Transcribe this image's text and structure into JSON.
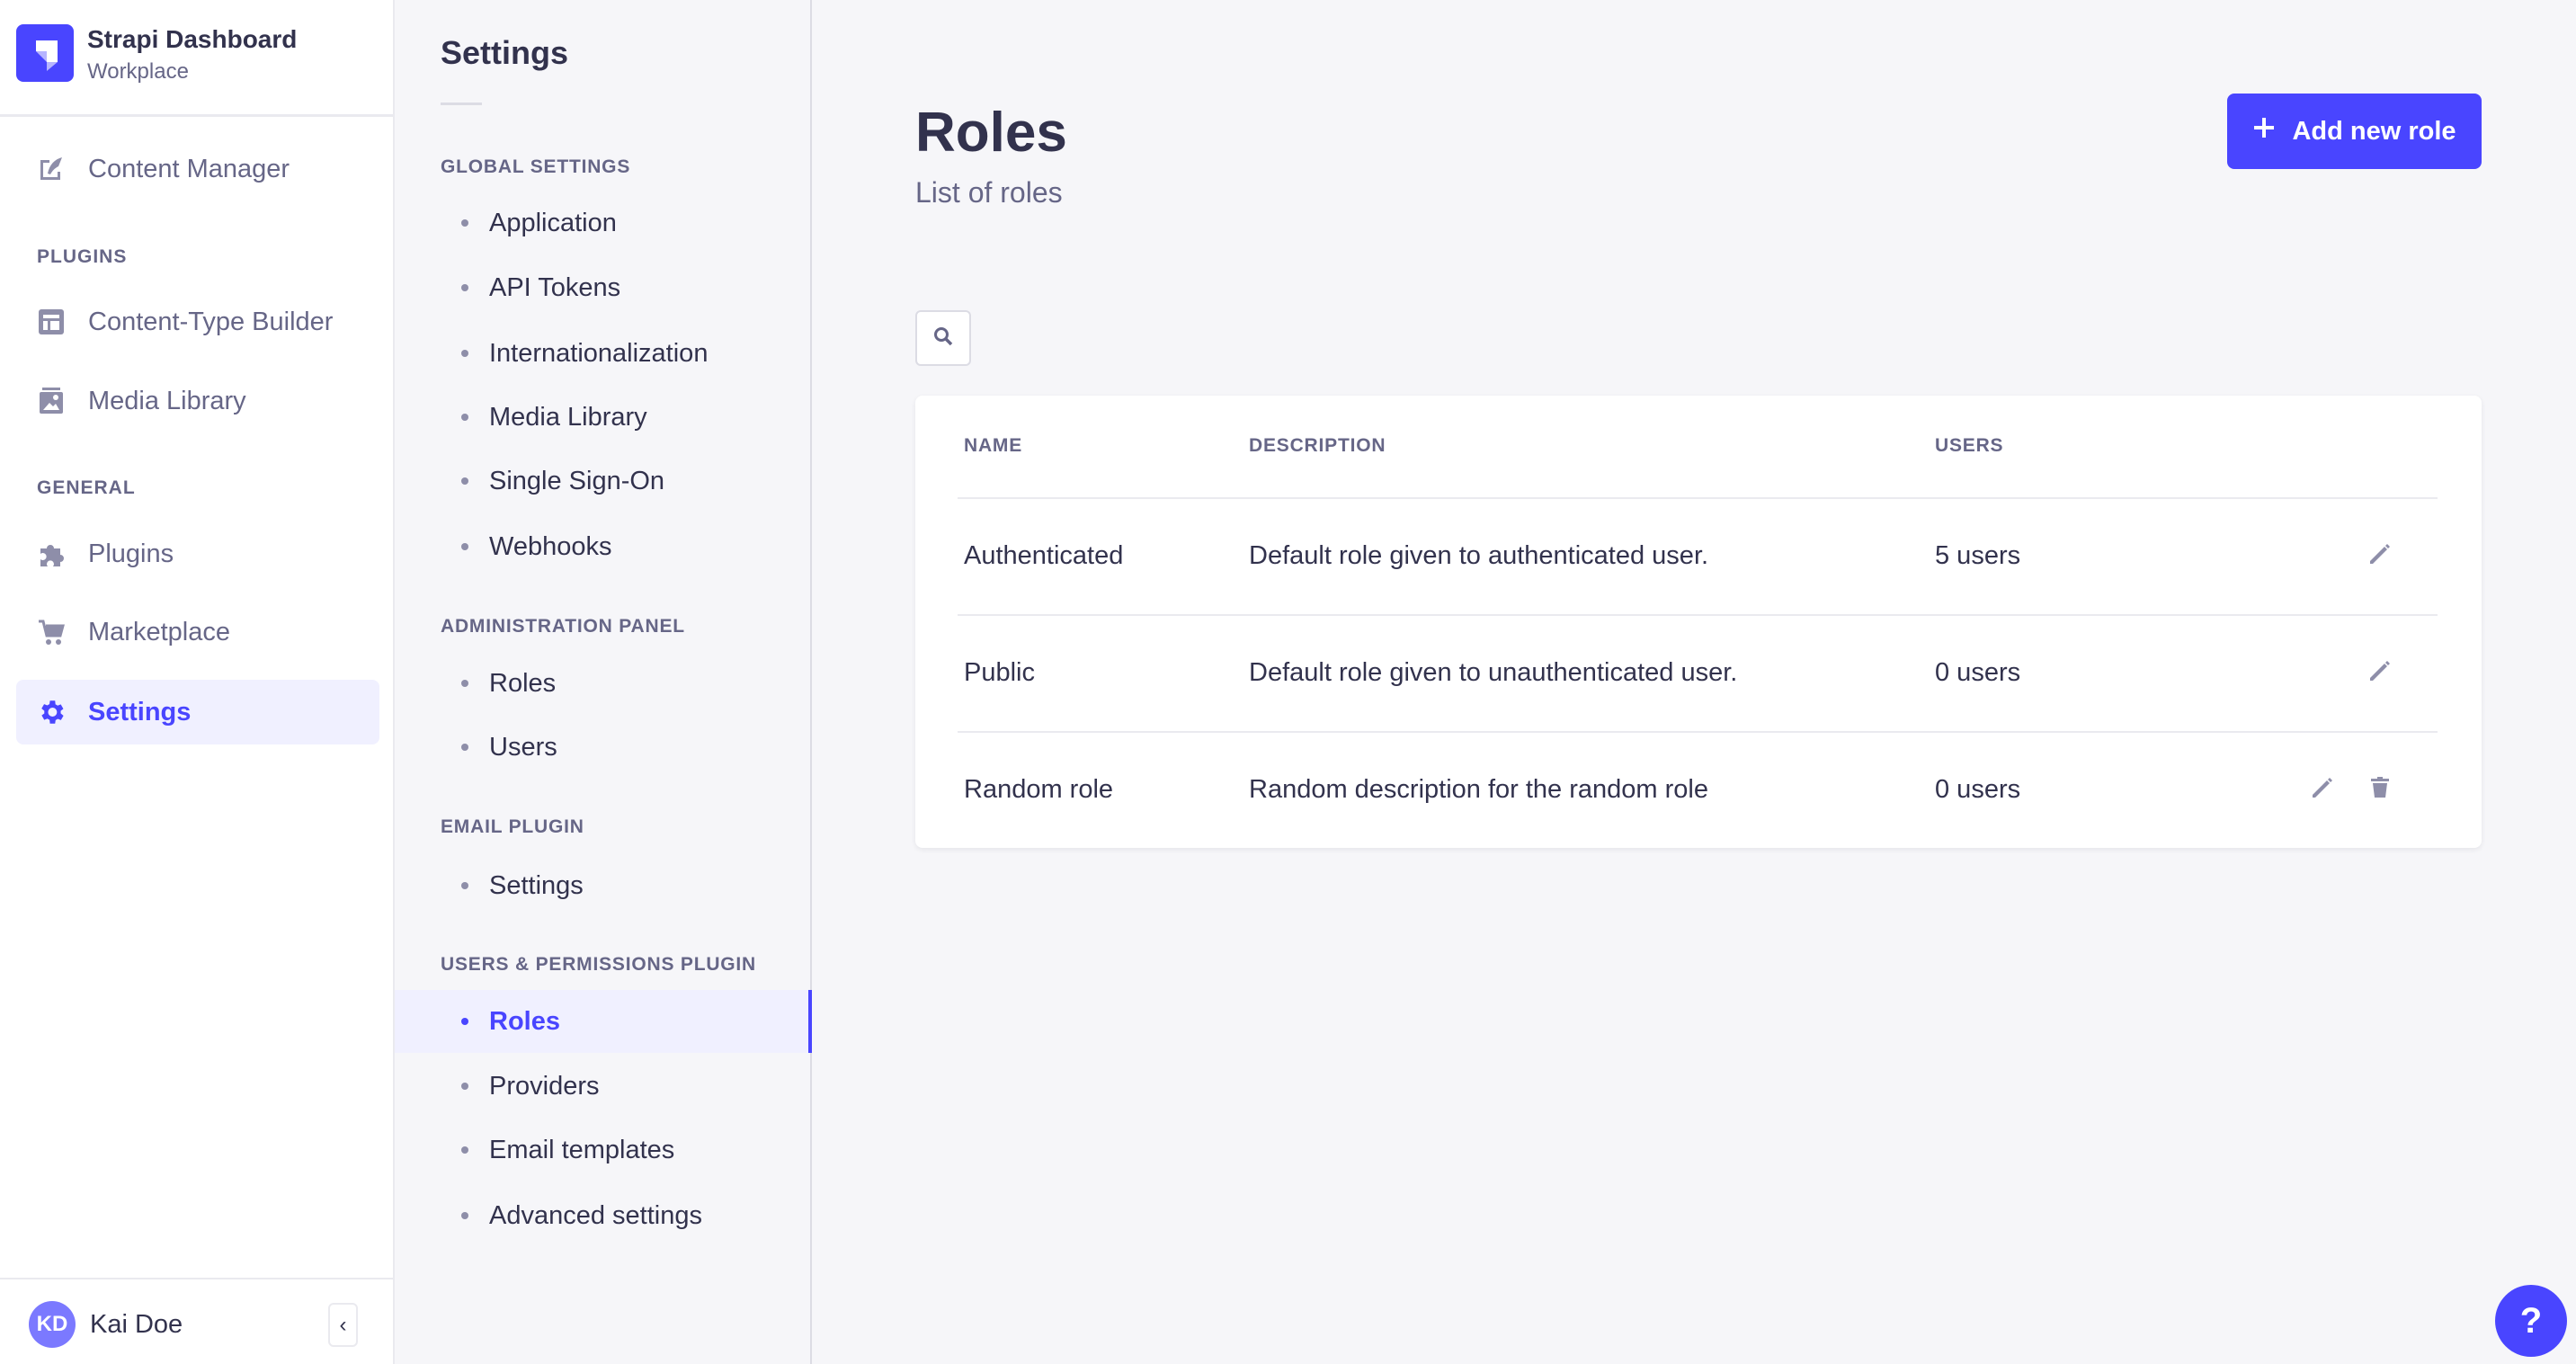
{
  "app": {
    "name": "Strapi Dashboard",
    "workspace": "Workplace"
  },
  "sidebar": {
    "items": [
      {
        "label": "Content Manager",
        "icon": "feather-icon"
      },
      {
        "section": "PLUGINS"
      },
      {
        "label": "Content-Type Builder",
        "icon": "layout-icon"
      },
      {
        "label": "Media Library",
        "icon": "picture-icon"
      },
      {
        "section": "GENERAL"
      },
      {
        "label": "Plugins",
        "icon": "puzzle-icon"
      },
      {
        "label": "Marketplace",
        "icon": "cart-icon"
      },
      {
        "label": "Settings",
        "icon": "gear-icon",
        "active": true
      }
    ],
    "user": {
      "initials": "KD",
      "name": "Kai Doe"
    }
  },
  "settings_nav": {
    "title": "Settings",
    "sections": [
      {
        "title": "GLOBAL SETTINGS",
        "items": [
          "Application",
          "API Tokens",
          "Internationalization",
          "Media Library",
          "Single Sign-On",
          "Webhooks"
        ]
      },
      {
        "title": "ADMINISTRATION PANEL",
        "items": [
          "Roles",
          "Users"
        ]
      },
      {
        "title": "EMAIL PLUGIN",
        "items": [
          "Settings"
        ]
      },
      {
        "title": "USERS & PERMISSIONS PLUGIN",
        "items": [
          "Roles",
          "Providers",
          "Email templates",
          "Advanced settings"
        ],
        "active": "Roles"
      }
    ]
  },
  "main": {
    "title": "Roles",
    "subtitle": "List of roles",
    "add_button": "Add new role",
    "table": {
      "headers": [
        "NAME",
        "DESCRIPTION",
        "USERS"
      ],
      "rows": [
        {
          "name": "Authenticated",
          "description": "Default role given to authenticated user.",
          "users": "5 users"
        },
        {
          "name": "Public",
          "description": "Default role given to unauthenticated user.",
          "users": "0 users"
        },
        {
          "name": "Random role",
          "description": "Random description for the random role",
          "users": "0 users"
        }
      ]
    }
  },
  "help": "?",
  "colors": {
    "primary": "#4945ff",
    "text": "#32324d",
    "muted": "#666687",
    "icon": "#8e8ea9",
    "background": "#f6f6f9"
  }
}
